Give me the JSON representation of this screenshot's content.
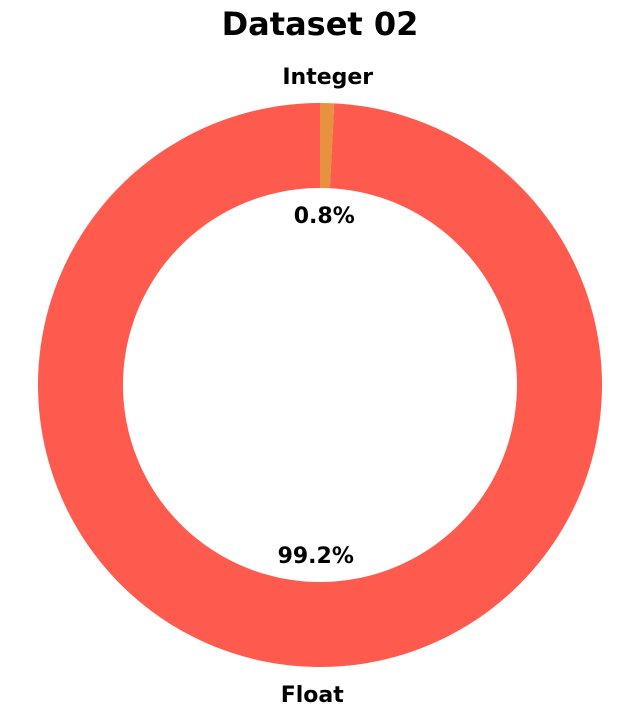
{
  "chart_data": {
    "type": "pie",
    "title": "Dataset 02",
    "donut": true,
    "start": "top",
    "direction": "clockwise",
    "slices": [
      {
        "label": "Integer",
        "value": 0.8,
        "pct_label": "0.8%",
        "color": "#E8913E"
      },
      {
        "label": "Float",
        "value": 99.2,
        "pct_label": "99.2%",
        "color": "#FF5A4E"
      }
    ]
  }
}
